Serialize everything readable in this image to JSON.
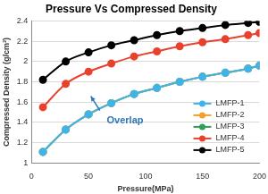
{
  "chart_data": {
    "type": "line",
    "title": "Pressure Vs Compressed Density",
    "x_label": "Pressure(MPa)",
    "y_label": "Compressed Density (g/cm³)",
    "annotation": "Overlap",
    "x": [
      10,
      30,
      50,
      70,
      90,
      110,
      130,
      150,
      170,
      190,
      200
    ],
    "series": [
      {
        "name": "LMFP-1",
        "color": "#3fb4e8",
        "values": [
          1.11,
          1.33,
          1.48,
          1.59,
          1.68,
          1.74,
          1.8,
          1.85,
          1.89,
          1.93,
          1.96
        ]
      },
      {
        "name": "LMFP-2",
        "color": "#f0a030",
        "values": [
          1.11,
          1.33,
          1.48,
          1.59,
          1.68,
          1.74,
          1.8,
          1.85,
          1.89,
          1.93,
          1.96
        ]
      },
      {
        "name": "LMFP-3",
        "color": "#2e9e5b",
        "values": [
          1.11,
          1.33,
          1.48,
          1.59,
          1.68,
          1.74,
          1.8,
          1.85,
          1.89,
          1.93,
          1.96
        ]
      },
      {
        "name": "LMFP-4",
        "color": "#e8412c",
        "values": [
          1.55,
          1.78,
          1.9,
          1.98,
          2.05,
          2.1,
          2.15,
          2.19,
          2.22,
          2.26,
          2.28
        ]
      },
      {
        "name": "LMFP-5",
        "color": "#000000",
        "values": [
          1.82,
          2.0,
          2.09,
          2.16,
          2.21,
          2.26,
          2.3,
          2.33,
          2.36,
          2.38,
          2.39
        ]
      }
    ],
    "xlim": [
      0,
      200
    ],
    "xticks": [
      0,
      50,
      100,
      150,
      200
    ],
    "ylim": [
      1,
      2.4
    ],
    "yticks": [
      1,
      1.2,
      1.4,
      1.6,
      1.8,
      2,
      2.2,
      2.4
    ],
    "grid": true,
    "legend": "lower right",
    "marker": "circle",
    "line_style": "solid"
  }
}
